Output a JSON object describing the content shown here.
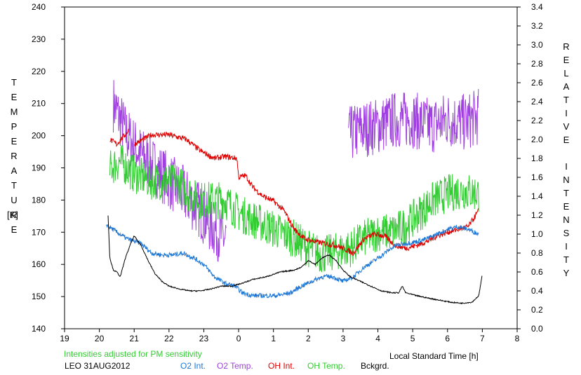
{
  "chart_data": {
    "type": "line",
    "left_axis": {
      "label_letters": [
        "T",
        "E",
        "M",
        "P",
        "E",
        "R",
        "A",
        "T",
        "U",
        "R",
        "E"
      ],
      "unit": "[K]",
      "min": 140,
      "max": 240,
      "ticks": [
        "140",
        "150",
        "160",
        "170",
        "180",
        "190",
        "200",
        "210",
        "220",
        "230",
        "240"
      ]
    },
    "right_axis": {
      "label_letters": [
        "R",
        "E",
        "L",
        "A",
        "T",
        "I",
        "V",
        "E",
        "",
        "I",
        "N",
        "T",
        "E",
        "N",
        "S",
        "I",
        "T",
        "Y"
      ],
      "min": 0.0,
      "max": 3.4,
      "ticks": [
        "0.0",
        "0.2",
        "0.4",
        "0.6",
        "0.8",
        "1.0",
        "1.2",
        "1.4",
        "1.6",
        "1.8",
        "2.0",
        "2.2",
        "2.4",
        "2.6",
        "2.8",
        "3.0",
        "3.2",
        "3.4"
      ]
    },
    "x_axis": {
      "label": "Local Standard Time [h]",
      "min": 19,
      "max": 32,
      "ticks": [
        "19",
        "20",
        "21",
        "22",
        "23",
        "0",
        "1",
        "2",
        "3",
        "4",
        "5",
        "6",
        "7",
        "8"
      ]
    },
    "note": "Intensities adjusted for PM sensitivity",
    "station": "LEO 31AUG2012",
    "grid": false,
    "series": [
      {
        "name": "O2 Int.",
        "axis": "right",
        "color": "#1f78d6",
        "noise": 0.025,
        "points": [
          [
            20.2,
            1.1
          ],
          [
            20.5,
            1.02
          ],
          [
            20.8,
            0.95
          ],
          [
            21.2,
            0.9
          ],
          [
            21.5,
            0.8
          ],
          [
            21.8,
            0.78
          ],
          [
            22.1,
            0.78
          ],
          [
            22.4,
            0.8
          ],
          [
            22.7,
            0.75
          ],
          [
            23.0,
            0.68
          ],
          [
            23.3,
            0.55
          ],
          [
            23.6,
            0.48
          ],
          [
            23.9,
            0.45
          ],
          [
            24.1,
            0.38
          ],
          [
            24.4,
            0.35
          ],
          [
            24.8,
            0.35
          ],
          [
            25.1,
            0.35
          ],
          [
            25.5,
            0.38
          ],
          [
            25.8,
            0.45
          ],
          [
            26.1,
            0.5
          ],
          [
            26.4,
            0.55
          ],
          [
            26.7,
            0.55
          ],
          [
            27.0,
            0.5
          ],
          [
            27.3,
            0.55
          ],
          [
            27.6,
            0.65
          ],
          [
            27.9,
            0.72
          ],
          [
            28.2,
            0.8
          ],
          [
            28.5,
            0.88
          ],
          [
            28.8,
            0.9
          ],
          [
            29.1,
            0.92
          ],
          [
            29.4,
            0.95
          ],
          [
            29.7,
            1.0
          ],
          [
            30.0,
            1.05
          ],
          [
            30.3,
            1.08
          ],
          [
            30.6,
            1.05
          ],
          [
            30.9,
            1.0
          ]
        ]
      },
      {
        "name": "O2 Temp.",
        "axis": "left",
        "color": "#a040e0",
        "noise": 9,
        "gap": [
          23.65,
          24.3
        ],
        "gap2": [
          24.3,
          27.15
        ],
        "points": [
          [
            20.4,
            210
          ],
          [
            20.8,
            200
          ],
          [
            21.2,
            194
          ],
          [
            21.6,
            190
          ],
          [
            22.0,
            186
          ],
          [
            22.4,
            182
          ],
          [
            22.8,
            178
          ],
          [
            23.2,
            172
          ],
          [
            23.6,
            168
          ],
          [
            27.15,
            200
          ],
          [
            27.5,
            202
          ],
          [
            28.0,
            203
          ],
          [
            28.5,
            205
          ],
          [
            29.0,
            205
          ],
          [
            29.5,
            203
          ],
          [
            30.0,
            205
          ],
          [
            30.5,
            204
          ],
          [
            30.9,
            206
          ]
        ]
      },
      {
        "name": "OH Int.",
        "axis": "right",
        "color": "#e00000",
        "noise": 0.03,
        "gap": [
          20.85,
          21.0
        ],
        "gap2": [
          24.0,
          24.0
        ],
        "points": [
          [
            20.3,
            2.0
          ],
          [
            20.5,
            1.95
          ],
          [
            20.85,
            2.1
          ],
          [
            21.0,
            1.95
          ],
          [
            21.5,
            2.05
          ],
          [
            22.0,
            2.05
          ],
          [
            22.5,
            2.0
          ],
          [
            22.9,
            1.88
          ],
          [
            23.3,
            1.8
          ],
          [
            23.6,
            1.82
          ],
          [
            23.95,
            1.8
          ],
          [
            24.0,
            1.6
          ],
          [
            24.2,
            1.62
          ],
          [
            24.4,
            1.5
          ],
          [
            24.7,
            1.4
          ],
          [
            25.0,
            1.35
          ],
          [
            25.3,
            1.25
          ],
          [
            25.6,
            1.05
          ],
          [
            25.9,
            0.95
          ],
          [
            26.2,
            0.92
          ],
          [
            26.5,
            0.9
          ],
          [
            26.8,
            0.88
          ],
          [
            27.0,
            0.85
          ],
          [
            27.3,
            0.8
          ],
          [
            27.6,
            0.95
          ],
          [
            27.9,
            1.0
          ],
          [
            28.2,
            0.98
          ],
          [
            28.5,
            0.88
          ],
          [
            28.8,
            0.85
          ],
          [
            29.1,
            0.88
          ],
          [
            29.4,
            0.92
          ],
          [
            29.7,
            0.98
          ],
          [
            30.0,
            1.02
          ],
          [
            30.3,
            1.05
          ],
          [
            30.6,
            1.08
          ],
          [
            30.9,
            1.25
          ]
        ]
      },
      {
        "name": "OH Temp.",
        "axis": "left",
        "color": "#33cc33",
        "noise": 6,
        "points": [
          [
            20.3,
            190
          ],
          [
            20.6,
            192
          ],
          [
            21.0,
            188
          ],
          [
            21.5,
            186
          ],
          [
            22.0,
            186
          ],
          [
            22.4,
            184
          ],
          [
            22.8,
            180
          ],
          [
            23.2,
            180
          ],
          [
            23.6,
            180
          ],
          [
            24.0,
            176
          ],
          [
            24.4,
            174
          ],
          [
            24.8,
            172
          ],
          [
            25.2,
            170
          ],
          [
            25.6,
            168
          ],
          [
            26.0,
            165
          ],
          [
            26.4,
            163
          ],
          [
            26.8,
            164
          ],
          [
            27.2,
            165
          ],
          [
            27.6,
            168
          ],
          [
            28.0,
            170
          ],
          [
            28.4,
            170
          ],
          [
            28.8,
            172
          ],
          [
            29.2,
            176
          ],
          [
            29.6,
            180
          ],
          [
            30.0,
            182
          ],
          [
            30.4,
            183
          ],
          [
            30.9,
            182
          ]
        ]
      },
      {
        "name": "Bckgrd.",
        "axis": "right",
        "color": "#000000",
        "noise": 0.006,
        "points": [
          [
            20.25,
            1.2
          ],
          [
            20.3,
            0.75
          ],
          [
            20.4,
            0.62
          ],
          [
            20.5,
            0.6
          ],
          [
            20.6,
            0.55
          ],
          [
            20.75,
            0.75
          ],
          [
            20.9,
            0.9
          ],
          [
            21.0,
            0.98
          ],
          [
            21.2,
            0.88
          ],
          [
            21.4,
            0.72
          ],
          [
            21.6,
            0.58
          ],
          [
            21.8,
            0.5
          ],
          [
            22.0,
            0.45
          ],
          [
            22.3,
            0.42
          ],
          [
            22.6,
            0.4
          ],
          [
            22.9,
            0.4
          ],
          [
            23.2,
            0.42
          ],
          [
            23.5,
            0.45
          ],
          [
            23.8,
            0.45
          ],
          [
            24.1,
            0.48
          ],
          [
            24.4,
            0.52
          ],
          [
            24.8,
            0.55
          ],
          [
            25.2,
            0.6
          ],
          [
            25.6,
            0.62
          ],
          [
            25.8,
            0.65
          ],
          [
            26.0,
            0.72
          ],
          [
            26.2,
            0.68
          ],
          [
            26.4,
            0.75
          ],
          [
            26.6,
            0.78
          ],
          [
            26.8,
            0.72
          ],
          [
            27.0,
            0.62
          ],
          [
            27.2,
            0.55
          ],
          [
            27.5,
            0.5
          ],
          [
            27.8,
            0.45
          ],
          [
            28.1,
            0.4
          ],
          [
            28.4,
            0.38
          ],
          [
            28.6,
            0.38
          ],
          [
            28.7,
            0.45
          ],
          [
            28.8,
            0.38
          ],
          [
            29.1,
            0.35
          ],
          [
            29.5,
            0.32
          ],
          [
            29.8,
            0.3
          ],
          [
            30.1,
            0.28
          ],
          [
            30.4,
            0.27
          ],
          [
            30.7,
            0.28
          ],
          [
            30.9,
            0.35
          ],
          [
            31.0,
            0.58
          ]
        ]
      }
    ]
  }
}
